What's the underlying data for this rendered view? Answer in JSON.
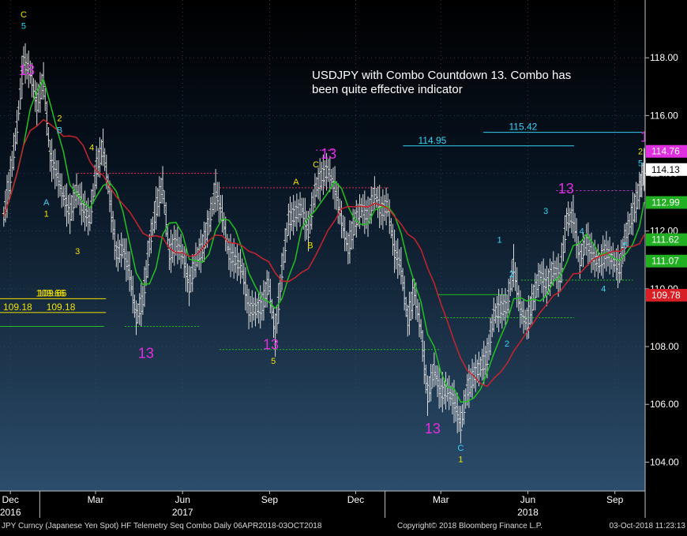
{
  "chart_data": {
    "type": "line",
    "title": "",
    "annotation": [
      "USDJPY with Combo Countdown 13.  Combo has",
      "been quite effective indicator"
    ],
    "xlabel": "",
    "ylabel": "",
    "x_range": [
      "2016-11-20",
      "2018-10-03"
    ],
    "ylim": [
      103.0,
      120.0
    ],
    "y_ticks": [
      "104.00",
      "106.00",
      "108.00",
      "110.00",
      "112.00",
      "114.00",
      "116.00",
      "118.00"
    ],
    "month_ticks": [
      {
        "label": "Dec",
        "date": "2016-12-01"
      },
      {
        "label": "Mar",
        "date": "2017-03-01"
      },
      {
        "label": "Jun",
        "date": "2017-06-01"
      },
      {
        "label": "Sep",
        "date": "2017-09-01"
      },
      {
        "label": "Dec",
        "date": "2017-12-01"
      },
      {
        "label": "Mar",
        "date": "2018-03-01"
      },
      {
        "label": "Jun",
        "date": "2018-06-01"
      },
      {
        "label": "Sep",
        "date": "2018-09-01"
      }
    ],
    "year_ticks": [
      {
        "label": "2016",
        "date": "2016-12-01"
      },
      {
        "label": "2017",
        "date": "2017-06-01"
      },
      {
        "label": "2018",
        "date": "2018-06-01"
      }
    ],
    "price": [
      [
        "2016-11-24",
        112.5
      ],
      [
        "2016-12-01",
        113.9
      ],
      [
        "2016-12-08",
        115.6
      ],
      [
        "2016-12-15",
        117.9
      ],
      [
        "2016-12-22",
        117.5
      ],
      [
        "2016-12-29",
        116.4
      ],
      [
        "2017-01-05",
        117.2
      ],
      [
        "2017-01-12",
        114.6
      ],
      [
        "2017-01-19",
        114.0
      ],
      [
        "2017-01-26",
        113.2
      ],
      [
        "2017-02-02",
        112.6
      ],
      [
        "2017-02-09",
        113.4
      ],
      [
        "2017-02-16",
        112.8
      ],
      [
        "2017-02-23",
        112.4
      ],
      [
        "2017-03-02",
        114.2
      ],
      [
        "2017-03-09",
        114.9
      ],
      [
        "2017-03-16",
        113.2
      ],
      [
        "2017-03-23",
        111.2
      ],
      [
        "2017-03-30",
        111.4
      ],
      [
        "2017-04-06",
        110.6
      ],
      [
        "2017-04-13",
        109.0
      ],
      [
        "2017-04-20",
        109.6
      ],
      [
        "2017-04-27",
        111.5
      ],
      [
        "2017-05-04",
        112.8
      ],
      [
        "2017-05-11",
        113.6
      ],
      [
        "2017-05-18",
        111.2
      ],
      [
        "2017-05-25",
        111.6
      ],
      [
        "2017-06-01",
        111.2
      ],
      [
        "2017-06-08",
        110.1
      ],
      [
        "2017-06-15",
        111.0
      ],
      [
        "2017-06-22",
        111.4
      ],
      [
        "2017-06-29",
        112.3
      ],
      [
        "2017-07-06",
        113.4
      ],
      [
        "2017-07-13",
        112.6
      ],
      [
        "2017-07-20",
        111.2
      ],
      [
        "2017-07-27",
        111.0
      ],
      [
        "2017-08-03",
        110.7
      ],
      [
        "2017-08-10",
        109.3
      ],
      [
        "2017-08-17",
        109.3
      ],
      [
        "2017-08-24",
        109.4
      ],
      [
        "2017-08-31",
        110.2
      ],
      [
        "2017-09-07",
        108.4
      ],
      [
        "2017-09-14",
        110.6
      ],
      [
        "2017-09-21",
        112.4
      ],
      [
        "2017-09-28",
        112.6
      ],
      [
        "2017-10-05",
        112.8
      ],
      [
        "2017-10-12",
        112.0
      ],
      [
        "2017-10-19",
        113.4
      ],
      [
        "2017-10-26",
        113.9
      ],
      [
        "2017-11-02",
        114.1
      ],
      [
        "2017-11-09",
        113.5
      ],
      [
        "2017-11-16",
        112.4
      ],
      [
        "2017-11-23",
        111.4
      ],
      [
        "2017-11-30",
        112.3
      ],
      [
        "2017-12-07",
        112.8
      ],
      [
        "2017-12-14",
        112.5
      ],
      [
        "2017-12-21",
        113.3
      ],
      [
        "2017-12-28",
        112.7
      ],
      [
        "2018-01-04",
        112.9
      ],
      [
        "2018-01-11",
        111.3
      ],
      [
        "2018-01-18",
        110.8
      ],
      [
        "2018-01-25",
        108.9
      ],
      [
        "2018-02-01",
        109.9
      ],
      [
        "2018-02-08",
        108.6
      ],
      [
        "2018-02-15",
        106.3
      ],
      [
        "2018-02-22",
        107.2
      ],
      [
        "2018-03-01",
        106.4
      ],
      [
        "2018-03-08",
        106.5
      ],
      [
        "2018-03-15",
        106.1
      ],
      [
        "2018-03-22",
        105.3
      ],
      [
        "2018-03-29",
        106.5
      ],
      [
        "2018-04-05",
        107.0
      ],
      [
        "2018-04-12",
        107.3
      ],
      [
        "2018-04-19",
        107.6
      ],
      [
        "2018-04-26",
        109.1
      ],
      [
        "2018-05-03",
        109.3
      ],
      [
        "2018-05-10",
        109.4
      ],
      [
        "2018-05-17",
        110.8
      ],
      [
        "2018-05-24",
        109.3
      ],
      [
        "2018-05-31",
        108.8
      ],
      [
        "2018-06-07",
        109.7
      ],
      [
        "2018-06-14",
        110.5
      ],
      [
        "2018-06-21",
        110.1
      ],
      [
        "2018-06-28",
        110.7
      ],
      [
        "2018-07-05",
        110.4
      ],
      [
        "2018-07-12",
        112.4
      ],
      [
        "2018-07-19",
        112.5
      ],
      [
        "2018-07-26",
        111.0
      ],
      [
        "2018-08-02",
        111.7
      ],
      [
        "2018-08-09",
        111.1
      ],
      [
        "2018-08-16",
        110.9
      ],
      [
        "2018-08-23",
        111.3
      ],
      [
        "2018-08-30",
        111.0
      ],
      [
        "2018-09-06",
        110.7
      ],
      [
        "2018-09-13",
        111.9
      ],
      [
        "2018-09-20",
        112.6
      ],
      [
        "2018-09-27",
        113.4
      ],
      [
        "2018-10-02",
        114.13
      ]
    ],
    "series": [
      {
        "color": "#d7d7d7"
      },
      {
        "color": "#22c022"
      },
      {
        "color": "#c8242c"
      }
    ],
    "value_tags": [
      {
        "label": "114.76",
        "value": 114.76,
        "bg": "#e02fe0",
        "fg": "#ffffff"
      },
      {
        "label": "114.13",
        "value": 114.13,
        "bg": "#ffffff",
        "fg": "#000000"
      },
      {
        "label": "112.99",
        "value": 112.99,
        "bg": "#21b021",
        "fg": "#ffffff"
      },
      {
        "label": "111.62",
        "value": 111.62,
        "bg": "#21b021",
        "fg": "#ffffff"
      },
      {
        "label": "111.07",
        "value": 111.07,
        "bg": "#21b021",
        "fg": "#ffffff"
      },
      {
        "label": "109.78",
        "value": 109.78,
        "bg": "#d81f25",
        "fg": "#ffffff"
      }
    ],
    "level_labels": [
      {
        "label": "115.42",
        "value": 115.42,
        "color": "#37d3f5"
      },
      {
        "label": "114.95",
        "value": 114.95,
        "color": "#37d3f5"
      },
      {
        "label": "109.66",
        "value": 109.66,
        "color": "#f1e200"
      },
      {
        "label": "109.18",
        "value": 109.18,
        "color": "#f1e200"
      }
    ],
    "countdown_labels": [
      "13",
      "13",
      "13",
      "13",
      "13",
      "13",
      "13",
      "13"
    ],
    "setup_labels": [
      "C",
      "5",
      "2",
      "B",
      "A",
      "1",
      "3",
      "4",
      "5",
      "C",
      "1",
      "2",
      "4",
      "2",
      "5",
      "C",
      "A",
      "B",
      "1",
      "2",
      "3",
      "4",
      "5"
    ]
  },
  "footer": {
    "left": "JPY Curncy (Japanese Yen Spot) HF Telemetry Seq Combo  Daily 06APR2018-03OCT2018",
    "center": "Copyright© 2018 Bloomberg Finance L.P.",
    "right": "03-Oct-2018 11:23:13"
  }
}
